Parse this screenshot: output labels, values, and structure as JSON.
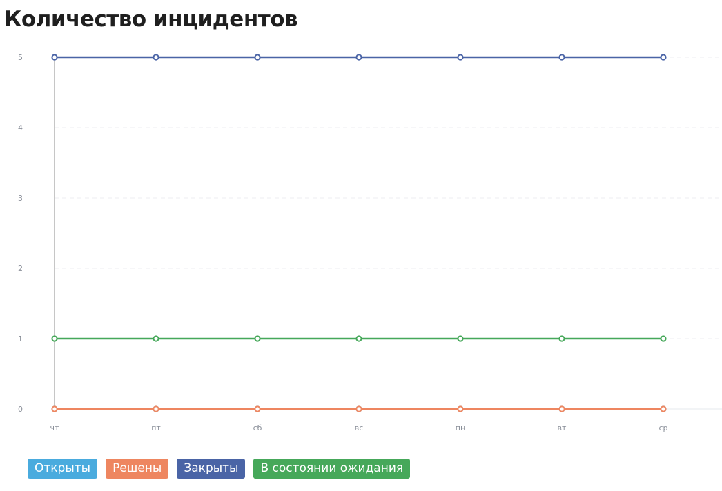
{
  "chart_data": {
    "type": "line",
    "title": "Количество инцидентов",
    "categories": [
      "чт",
      "пт",
      "сб",
      "вс",
      "пн",
      "вт",
      "ср"
    ],
    "ylim": [
      0,
      5
    ],
    "yticks": [
      0,
      1,
      2,
      3,
      4,
      5
    ],
    "grid": true,
    "legend_position": "bottom-left",
    "series": [
      {
        "name": "Открыты",
        "color": "#4aabde",
        "values": [
          0,
          0,
          0,
          0,
          0,
          0,
          0
        ]
      },
      {
        "name": "Решены",
        "color": "#ee8660",
        "values": [
          0,
          0,
          0,
          0,
          0,
          0,
          0
        ]
      },
      {
        "name": "Закрыты",
        "color": "#4a64a6",
        "values": [
          5,
          5,
          5,
          5,
          5,
          5,
          5
        ]
      },
      {
        "name": "В состоянии ожидания",
        "color": "#46a85a",
        "values": [
          1,
          1,
          1,
          1,
          1,
          1,
          1
        ]
      }
    ]
  }
}
